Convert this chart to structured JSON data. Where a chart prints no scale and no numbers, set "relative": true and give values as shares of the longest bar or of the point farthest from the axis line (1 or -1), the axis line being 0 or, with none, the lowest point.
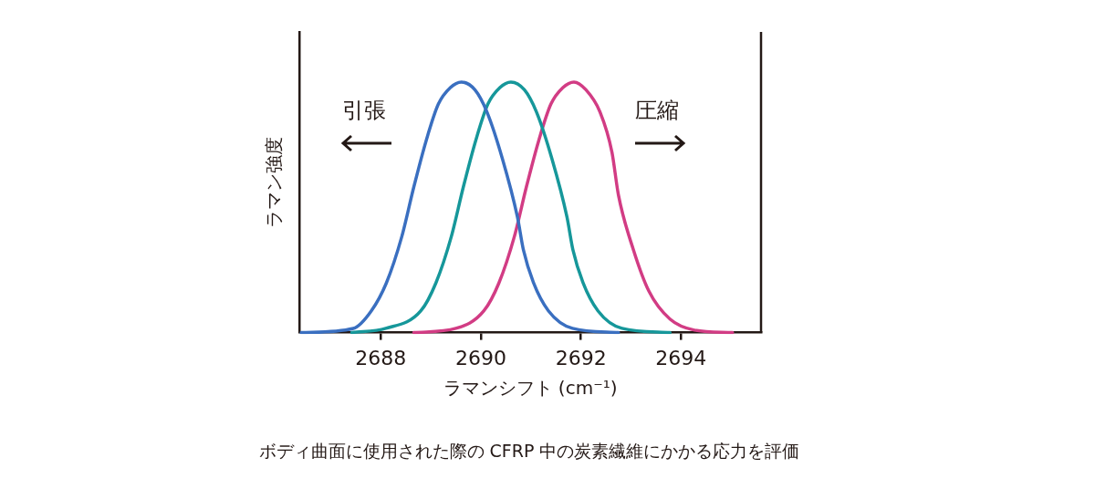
{
  "chart_data": {
    "type": "line",
    "relative": true,
    "xlabel": "ラマンシフト (cm⁻¹)",
    "ylabel": "ラマン強度",
    "xlim": [
      2686.37,
      2695.6
    ],
    "xticks": [
      2688,
      2690,
      2692,
      2694
    ],
    "grid": false,
    "legend": false,
    "marker": "none",
    "line_style": "solid",
    "annotations": [
      "引張",
      "圧縮",
      "ボディ曲面に使用された際の CFRP 中の炭素繊維にかかる応力を評価"
    ],
    "series": [
      {
        "color": "#3a6fc0",
        "x": [
          2686.41,
          2687.45,
          2687.81,
          2688.11,
          2688.42,
          2688.66,
          2688.91,
          2689.15,
          2689.39,
          2689.61,
          2689.88,
          2690.12,
          2690.43,
          2690.73,
          2690.85,
          2691.05,
          2691.35,
          2691.83,
          2692.75
        ],
        "values": [
          0,
          0.017,
          0.087,
          0.198,
          0.384,
          0.582,
          0.769,
          0.912,
          0.978,
          1,
          0.969,
          0.881,
          0.694,
          0.462,
          0.33,
          0.2,
          0.087,
          0.017,
          0
        ]
      },
      {
        "color": "#16979a",
        "x": [
          2687.42,
          2688.1,
          2688.8,
          2689.1,
          2689.41,
          2689.65,
          2689.9,
          2690.14,
          2690.38,
          2690.6,
          2690.87,
          2691.11,
          2691.42,
          2691.72,
          2691.84,
          2692.04,
          2692.34,
          2692.82,
          2693.78
        ],
        "values": [
          0,
          0.017,
          0.087,
          0.198,
          0.384,
          0.582,
          0.769,
          0.912,
          0.978,
          1,
          0.969,
          0.881,
          0.694,
          0.462,
          0.33,
          0.2,
          0.087,
          0.017,
          0
        ]
      },
      {
        "color": "#d23c84",
        "x": [
          2688.66,
          2689.5,
          2690.06,
          2690.36,
          2690.67,
          2690.91,
          2691.16,
          2691.4,
          2691.64,
          2691.86,
          2692.1,
          2692.38,
          2692.62,
          2692.75,
          2693.05,
          2693.36,
          2693.78,
          2694.27,
          2695.03
        ],
        "values": [
          0,
          0.017,
          0.087,
          0.198,
          0.384,
          0.582,
          0.769,
          0.912,
          0.978,
          1,
          0.969,
          0.881,
          0.72,
          0.549,
          0.33,
          0.165,
          0.054,
          0.01,
          0
        ]
      }
    ]
  }
}
